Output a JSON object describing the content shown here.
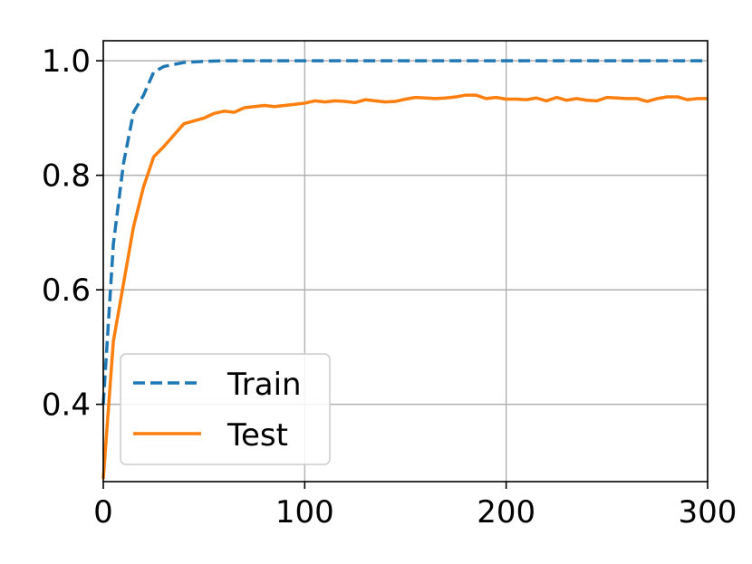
{
  "chart_data": {
    "type": "line",
    "title": "",
    "xlabel": "",
    "ylabel": "",
    "xlim": [
      0,
      300
    ],
    "ylim": [
      0.265,
      1.035
    ],
    "xticks": [
      0,
      100,
      200,
      300
    ],
    "xtick_labels": [
      "0",
      "100",
      "200",
      "300"
    ],
    "yticks": [
      0.4,
      0.6,
      0.8,
      1.0
    ],
    "ytick_labels": [
      "0.4",
      "0.6",
      "0.8",
      "1.0"
    ],
    "grid": true,
    "legend_position": "lower-left",
    "series": [
      {
        "name": "Train",
        "color": "#1f77b4",
        "style": "dashed",
        "points": [
          [
            0,
            0.4
          ],
          [
            5,
            0.68
          ],
          [
            10,
            0.82
          ],
          [
            15,
            0.91
          ],
          [
            20,
            0.94
          ],
          [
            25,
            0.98
          ],
          [
            30,
            0.99
          ],
          [
            40,
            0.997
          ],
          [
            50,
            0.999
          ],
          [
            60,
            1.0
          ],
          [
            100,
            1.0
          ],
          [
            150,
            1.0
          ],
          [
            200,
            1.0
          ],
          [
            250,
            1.0
          ],
          [
            300,
            1.0
          ]
        ]
      },
      {
        "name": "Test",
        "color": "#ff7f0e",
        "style": "solid",
        "points": [
          [
            0,
            0.27
          ],
          [
            5,
            0.51
          ],
          [
            10,
            0.61
          ],
          [
            15,
            0.71
          ],
          [
            20,
            0.78
          ],
          [
            25,
            0.832
          ],
          [
            30,
            0.85
          ],
          [
            35,
            0.87
          ],
          [
            40,
            0.89
          ],
          [
            45,
            0.895
          ],
          [
            50,
            0.9
          ],
          [
            55,
            0.908
          ],
          [
            60,
            0.912
          ],
          [
            65,
            0.91
          ],
          [
            70,
            0.918
          ],
          [
            75,
            0.92
          ],
          [
            80,
            0.922
          ],
          [
            85,
            0.92
          ],
          [
            90,
            0.922
          ],
          [
            95,
            0.924
          ],
          [
            100,
            0.926
          ],
          [
            105,
            0.93
          ],
          [
            110,
            0.928
          ],
          [
            115,
            0.93
          ],
          [
            120,
            0.929
          ],
          [
            125,
            0.927
          ],
          [
            130,
            0.932
          ],
          [
            135,
            0.93
          ],
          [
            140,
            0.928
          ],
          [
            145,
            0.929
          ],
          [
            150,
            0.933
          ],
          [
            155,
            0.936
          ],
          [
            160,
            0.935
          ],
          [
            165,
            0.934
          ],
          [
            170,
            0.935
          ],
          [
            175,
            0.937
          ],
          [
            180,
            0.94
          ],
          [
            185,
            0.94
          ],
          [
            190,
            0.934
          ],
          [
            195,
            0.936
          ],
          [
            200,
            0.933
          ],
          [
            205,
            0.933
          ],
          [
            210,
            0.932
          ],
          [
            215,
            0.935
          ],
          [
            220,
            0.93
          ],
          [
            225,
            0.936
          ],
          [
            230,
            0.931
          ],
          [
            235,
            0.934
          ],
          [
            240,
            0.931
          ],
          [
            245,
            0.93
          ],
          [
            250,
            0.936
          ],
          [
            255,
            0.935
          ],
          [
            260,
            0.934
          ],
          [
            265,
            0.934
          ],
          [
            270,
            0.929
          ],
          [
            275,
            0.934
          ],
          [
            280,
            0.937
          ],
          [
            285,
            0.937
          ],
          [
            290,
            0.932
          ],
          [
            295,
            0.934
          ],
          [
            300,
            0.934
          ]
        ]
      }
    ]
  }
}
